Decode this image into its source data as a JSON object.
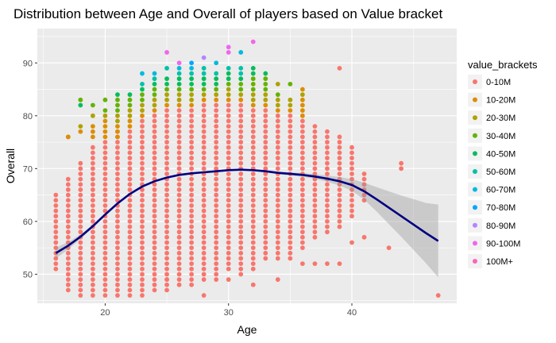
{
  "chart_data": {
    "type": "scatter",
    "title": "Distribution between Age and Overall of players based on Value bracket",
    "xlabel": "Age",
    "ylabel": "Overall",
    "xlim": [
      14.5,
      48.5
    ],
    "ylim": [
      44.5,
      96.5
    ],
    "x_ticks": [
      20,
      30,
      40
    ],
    "y_ticks": [
      50,
      60,
      70,
      80,
      90
    ],
    "grid": true,
    "legend": {
      "title": "value_brackets",
      "placement": "right",
      "entries": [
        {
          "label": "0-10M",
          "color": "#F8766D"
        },
        {
          "label": "10-20M",
          "color": "#DB8E00"
        },
        {
          "label": "20-30M",
          "color": "#AEA200"
        },
        {
          "label": "30-40M",
          "color": "#64B200"
        },
        {
          "label": "40-50M",
          "color": "#00BD5C"
        },
        {
          "label": "50-60M",
          "color": "#00C1A7"
        },
        {
          "label": "60-70M",
          "color": "#00BADE"
        },
        {
          "label": "70-80M",
          "color": "#00A6FF"
        },
        {
          "label": "80-90M",
          "color": "#B385FF"
        },
        {
          "label": "90-100M",
          "color": "#EF67EB"
        },
        {
          "label": "100M+",
          "color": "#FF63B6"
        }
      ]
    },
    "points": [
      {
        "age": 16,
        "min": 51,
        "max": 65,
        "extra": []
      },
      {
        "age": 17,
        "min": 47,
        "max": 68,
        "extra": [
          76
        ]
      },
      {
        "age": 18,
        "min": 46,
        "max": 71,
        "extra": []
      },
      {
        "age": 19,
        "min": 46,
        "max": 74,
        "extra": []
      },
      {
        "age": 20,
        "min": 46,
        "max": 75,
        "extra": []
      },
      {
        "age": 21,
        "min": 46,
        "max": 77,
        "extra": []
      },
      {
        "age": 22,
        "min": 46,
        "max": 77,
        "extra": []
      },
      {
        "age": 23,
        "min": 46,
        "max": 79,
        "extra": []
      },
      {
        "age": 24,
        "min": 47,
        "max": 80,
        "extra": []
      },
      {
        "age": 25,
        "min": 47,
        "max": 81,
        "extra": [
          49
        ]
      },
      {
        "age": 26,
        "min": 48,
        "max": 81,
        "extra": []
      },
      {
        "age": 27,
        "min": 48,
        "max": 81,
        "extra": []
      },
      {
        "age": 28,
        "min": 49,
        "max": 82,
        "extra": [
          46
        ]
      },
      {
        "age": 29,
        "min": 49,
        "max": 82,
        "extra": []
      },
      {
        "age": 30,
        "min": 51,
        "max": 82,
        "extra": [
          49
        ]
      },
      {
        "age": 31,
        "min": 50,
        "max": 82,
        "extra": []
      },
      {
        "age": 32,
        "min": 51,
        "max": 81,
        "extra": [
          48
        ]
      },
      {
        "age": 33,
        "min": 54,
        "max": 81,
        "extra": [
          53
        ]
      },
      {
        "age": 34,
        "min": 53,
        "max": 80,
        "extra": [
          49
        ]
      },
      {
        "age": 35,
        "min": 54,
        "max": 80,
        "extra": [
          53
        ]
      },
      {
        "age": 36,
        "min": 55,
        "max": 79,
        "extra": [
          52
        ]
      },
      {
        "age": 37,
        "min": 57,
        "max": 78,
        "extra": [
          52
        ]
      },
      {
        "age": 38,
        "min": 58,
        "max": 77,
        "extra": [
          52
        ]
      },
      {
        "age": 39,
        "min": 59,
        "max": 76,
        "extra": [
          52
        ]
      },
      {
        "age": 40,
        "min": 61,
        "max": 74,
        "extra": [
          56
        ]
      },
      {
        "age": 41,
        "min": 64,
        "max": 69,
        "extra": [
          57
        ]
      },
      {
        "age": 43,
        "min": 55,
        "max": 55,
        "extra": []
      },
      {
        "age": 44,
        "min": 70,
        "max": 71,
        "extra": []
      },
      {
        "age": 47,
        "min": 46,
        "max": 46,
        "extra": []
      }
    ],
    "top_points": [
      {
        "x": 17,
        "y": 76,
        "bracket": 1
      },
      {
        "x": 18,
        "y": 77,
        "bracket": 1
      },
      {
        "x": 18,
        "y": 78,
        "bracket": 2
      },
      {
        "x": 18,
        "y": 82,
        "bracket": 4
      },
      {
        "x": 18,
        "y": 83,
        "bracket": 3
      },
      {
        "x": 19,
        "y": 76,
        "bracket": 1
      },
      {
        "x": 19,
        "y": 77,
        "bracket": 1
      },
      {
        "x": 19,
        "y": 78,
        "bracket": 1
      },
      {
        "x": 19,
        "y": 80,
        "bracket": 2
      },
      {
        "x": 19,
        "y": 82,
        "bracket": 3
      },
      {
        "x": 20,
        "y": 76,
        "bracket": 1
      },
      {
        "x": 20,
        "y": 77,
        "bracket": 1
      },
      {
        "x": 20,
        "y": 78,
        "bracket": 1
      },
      {
        "x": 20,
        "y": 79,
        "bracket": 1
      },
      {
        "x": 20,
        "y": 80,
        "bracket": 2
      },
      {
        "x": 20,
        "y": 81,
        "bracket": 3
      },
      {
        "x": 20,
        "y": 83,
        "bracket": 3
      },
      {
        "x": 21,
        "y": 76,
        "bracket": 1
      },
      {
        "x": 21,
        "y": 77,
        "bracket": 1
      },
      {
        "x": 21,
        "y": 78,
        "bracket": 1
      },
      {
        "x": 21,
        "y": 79,
        "bracket": 2
      },
      {
        "x": 21,
        "y": 80,
        "bracket": 2
      },
      {
        "x": 21,
        "y": 81,
        "bracket": 3
      },
      {
        "x": 21,
        "y": 82,
        "bracket": 3
      },
      {
        "x": 21,
        "y": 83,
        "bracket": 3
      },
      {
        "x": 21,
        "y": 84,
        "bracket": 4
      },
      {
        "x": 22,
        "y": 78,
        "bracket": 1
      },
      {
        "x": 22,
        "y": 79,
        "bracket": 1
      },
      {
        "x": 22,
        "y": 80,
        "bracket": 2
      },
      {
        "x": 22,
        "y": 81,
        "bracket": 2
      },
      {
        "x": 22,
        "y": 82,
        "bracket": 3
      },
      {
        "x": 22,
        "y": 83,
        "bracket": 3
      },
      {
        "x": 22,
        "y": 84,
        "bracket": 4
      },
      {
        "x": 23,
        "y": 80,
        "bracket": 1
      },
      {
        "x": 23,
        "y": 81,
        "bracket": 2
      },
      {
        "x": 23,
        "y": 82,
        "bracket": 2
      },
      {
        "x": 23,
        "y": 83,
        "bracket": 3
      },
      {
        "x": 23,
        "y": 84,
        "bracket": 3
      },
      {
        "x": 23,
        "y": 85,
        "bracket": 4
      },
      {
        "x": 23,
        "y": 86,
        "bracket": 5
      },
      {
        "x": 23,
        "y": 88,
        "bracket": 6
      },
      {
        "x": 24,
        "y": 81,
        "bracket": 1
      },
      {
        "x": 24,
        "y": 82,
        "bracket": 2
      },
      {
        "x": 24,
        "y": 83,
        "bracket": 2
      },
      {
        "x": 24,
        "y": 84,
        "bracket": 3
      },
      {
        "x": 24,
        "y": 85,
        "bracket": 3
      },
      {
        "x": 24,
        "y": 86,
        "bracket": 4
      },
      {
        "x": 24,
        "y": 87,
        "bracket": 5
      },
      {
        "x": 24,
        "y": 88,
        "bracket": 6
      },
      {
        "x": 25,
        "y": 82,
        "bracket": 1
      },
      {
        "x": 25,
        "y": 83,
        "bracket": 2
      },
      {
        "x": 25,
        "y": 84,
        "bracket": 2
      },
      {
        "x": 25,
        "y": 85,
        "bracket": 3
      },
      {
        "x": 25,
        "y": 86,
        "bracket": 4
      },
      {
        "x": 25,
        "y": 87,
        "bracket": 4
      },
      {
        "x": 25,
        "y": 89,
        "bracket": 5
      },
      {
        "x": 25,
        "y": 92,
        "bracket": 9
      },
      {
        "x": 26,
        "y": 82,
        "bracket": 1
      },
      {
        "x": 26,
        "y": 83,
        "bracket": 2
      },
      {
        "x": 26,
        "y": 84,
        "bracket": 2
      },
      {
        "x": 26,
        "y": 85,
        "bracket": 3
      },
      {
        "x": 26,
        "y": 86,
        "bracket": 4
      },
      {
        "x": 26,
        "y": 87,
        "bracket": 4
      },
      {
        "x": 26,
        "y": 88,
        "bracket": 5
      },
      {
        "x": 26,
        "y": 89,
        "bracket": 6
      },
      {
        "x": 26,
        "y": 90,
        "bracket": 9
      },
      {
        "x": 27,
        "y": 82,
        "bracket": 1
      },
      {
        "x": 27,
        "y": 83,
        "bracket": 2
      },
      {
        "x": 27,
        "y": 84,
        "bracket": 2
      },
      {
        "x": 27,
        "y": 85,
        "bracket": 3
      },
      {
        "x": 27,
        "y": 86,
        "bracket": 4
      },
      {
        "x": 27,
        "y": 87,
        "bracket": 4
      },
      {
        "x": 27,
        "y": 88,
        "bracket": 5
      },
      {
        "x": 27,
        "y": 89,
        "bracket": 6
      },
      {
        "x": 27,
        "y": 90,
        "bracket": 7
      },
      {
        "x": 28,
        "y": 83,
        "bracket": 1
      },
      {
        "x": 28,
        "y": 84,
        "bracket": 2
      },
      {
        "x": 28,
        "y": 85,
        "bracket": 3
      },
      {
        "x": 28,
        "y": 86,
        "bracket": 4
      },
      {
        "x": 28,
        "y": 87,
        "bracket": 4
      },
      {
        "x": 28,
        "y": 88,
        "bracket": 5
      },
      {
        "x": 28,
        "y": 89,
        "bracket": 5
      },
      {
        "x": 28,
        "y": 91,
        "bracket": 8
      },
      {
        "x": 29,
        "y": 83,
        "bracket": 1
      },
      {
        "x": 29,
        "y": 84,
        "bracket": 2
      },
      {
        "x": 29,
        "y": 85,
        "bracket": 3
      },
      {
        "x": 29,
        "y": 86,
        "bracket": 4
      },
      {
        "x": 29,
        "y": 87,
        "bracket": 4
      },
      {
        "x": 29,
        "y": 88,
        "bracket": 5
      },
      {
        "x": 29,
        "y": 90,
        "bracket": 6
      },
      {
        "x": 30,
        "y": 83,
        "bracket": 1
      },
      {
        "x": 30,
        "y": 84,
        "bracket": 2
      },
      {
        "x": 30,
        "y": 85,
        "bracket": 2
      },
      {
        "x": 30,
        "y": 86,
        "bracket": 3
      },
      {
        "x": 30,
        "y": 87,
        "bracket": 4
      },
      {
        "x": 30,
        "y": 88,
        "bracket": 4
      },
      {
        "x": 30,
        "y": 89,
        "bracket": 5
      },
      {
        "x": 30,
        "y": 92,
        "bracket": 9
      },
      {
        "x": 30,
        "y": 93,
        "bracket": 9
      },
      {
        "x": 31,
        "y": 83,
        "bracket": 1
      },
      {
        "x": 31,
        "y": 84,
        "bracket": 2
      },
      {
        "x": 31,
        "y": 85,
        "bracket": 3
      },
      {
        "x": 31,
        "y": 86,
        "bracket": 3
      },
      {
        "x": 31,
        "y": 87,
        "bracket": 4
      },
      {
        "x": 31,
        "y": 88,
        "bracket": 5
      },
      {
        "x": 31,
        "y": 89,
        "bracket": 5
      },
      {
        "x": 31,
        "y": 92,
        "bracket": 6
      },
      {
        "x": 32,
        "y": 82,
        "bracket": 1
      },
      {
        "x": 32,
        "y": 83,
        "bracket": 2
      },
      {
        "x": 32,
        "y": 84,
        "bracket": 2
      },
      {
        "x": 32,
        "y": 85,
        "bracket": 3
      },
      {
        "x": 32,
        "y": 86,
        "bracket": 3
      },
      {
        "x": 32,
        "y": 87,
        "bracket": 3
      },
      {
        "x": 32,
        "y": 88,
        "bracket": 4
      },
      {
        "x": 32,
        "y": 89,
        "bracket": 4
      },
      {
        "x": 32,
        "y": 94,
        "bracket": 9
      },
      {
        "x": 33,
        "y": 82,
        "bracket": 1
      },
      {
        "x": 33,
        "y": 83,
        "bracket": 2
      },
      {
        "x": 33,
        "y": 84,
        "bracket": 2
      },
      {
        "x": 33,
        "y": 85,
        "bracket": 3
      },
      {
        "x": 33,
        "y": 86,
        "bracket": 3
      },
      {
        "x": 33,
        "y": 87,
        "bracket": 3
      },
      {
        "x": 33,
        "y": 88,
        "bracket": 4
      },
      {
        "x": 34,
        "y": 81,
        "bracket": 1
      },
      {
        "x": 34,
        "y": 82,
        "bracket": 2
      },
      {
        "x": 34,
        "y": 83,
        "bracket": 2
      },
      {
        "x": 34,
        "y": 84,
        "bracket": 3
      },
      {
        "x": 34,
        "y": 86,
        "bracket": 2
      },
      {
        "x": 35,
        "y": 81,
        "bracket": 1
      },
      {
        "x": 35,
        "y": 82,
        "bracket": 2
      },
      {
        "x": 35,
        "y": 83,
        "bracket": 2
      },
      {
        "x": 35,
        "y": 86,
        "bracket": 3
      },
      {
        "x": 36,
        "y": 80,
        "bracket": 1
      },
      {
        "x": 36,
        "y": 81,
        "bracket": 1
      },
      {
        "x": 36,
        "y": 82,
        "bracket": 1
      },
      {
        "x": 36,
        "y": 83,
        "bracket": 1
      },
      {
        "x": 36,
        "y": 84,
        "bracket": 2
      },
      {
        "x": 36,
        "y": 85,
        "bracket": 1
      },
      {
        "x": 39,
        "y": 89,
        "bracket": 0
      }
    ],
    "smooth_line": {
      "x": [
        16,
        17,
        18,
        19,
        20,
        21,
        22,
        23,
        24,
        25,
        26,
        27,
        28,
        29,
        30,
        31,
        32,
        33,
        34,
        35,
        36,
        37,
        38,
        39,
        40,
        41,
        42,
        43,
        44,
        45,
        46,
        47
      ],
      "y": [
        54.0,
        55.4,
        57.1,
        59.1,
        61.3,
        63.4,
        65.2,
        66.6,
        67.6,
        68.3,
        68.8,
        69.1,
        69.3,
        69.5,
        69.7,
        69.8,
        69.7,
        69.5,
        69.2,
        69.0,
        68.8,
        68.5,
        68.1,
        67.6,
        66.9,
        65.7,
        64.2,
        62.6,
        61.0,
        59.4,
        57.8,
        56.3
      ],
      "se": [
        1.0,
        0.7,
        0.4,
        0.3,
        0.25,
        0.2,
        0.15,
        0.12,
        0.1,
        0.1,
        0.1,
        0.1,
        0.1,
        0.1,
        0.12,
        0.14,
        0.16,
        0.2,
        0.25,
        0.3,
        0.35,
        0.45,
        0.6,
        0.8,
        1.1,
        1.6,
        2.3,
        3.1,
        3.9,
        4.8,
        5.7,
        6.9
      ],
      "color": "#000080",
      "ribbon_color": "#999999"
    }
  }
}
